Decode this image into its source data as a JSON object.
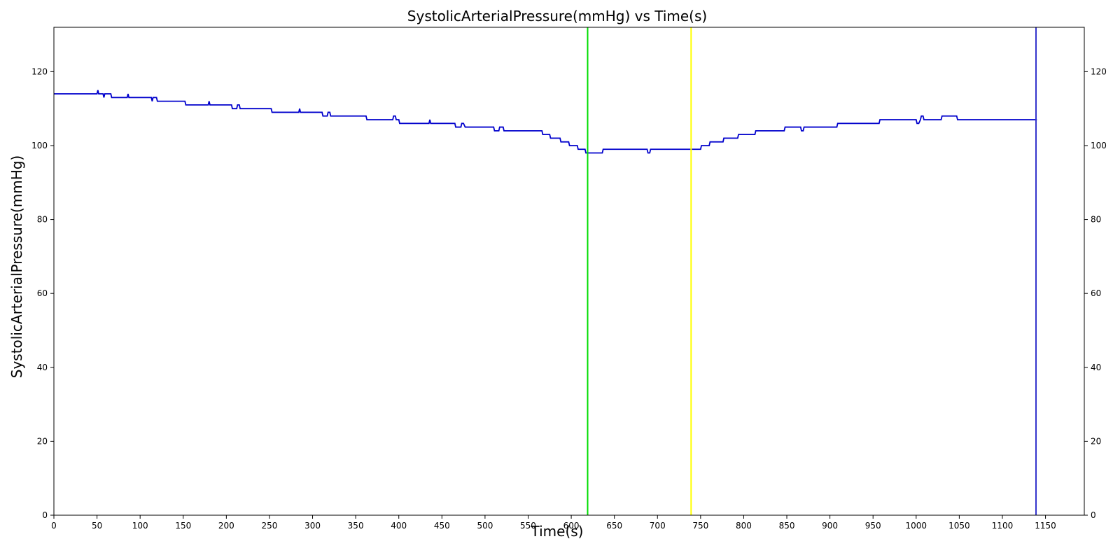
{
  "chart_data": {
    "type": "line",
    "title": "SystolicArterialPressure(mmHg) vs Time(s)",
    "xlabel": "Time(s)",
    "ylabel": "SystolicArterialPressure(mmHg)",
    "xlim": [
      0,
      1195
    ],
    "ylim": [
      0,
      132
    ],
    "xticks": [
      0,
      50,
      100,
      150,
      200,
      250,
      300,
      350,
      400,
      450,
      500,
      550,
      600,
      650,
      700,
      750,
      800,
      850,
      900,
      950,
      1000,
      1050,
      1100,
      1150
    ],
    "yticks": [
      0,
      20,
      40,
      60,
      80,
      100,
      120
    ],
    "right_axis_ticks": true,
    "grid": false,
    "series": [
      {
        "color": "#0000cc",
        "points": [
          [
            0,
            114
          ],
          [
            50,
            114
          ],
          [
            51,
            115
          ],
          [
            52,
            114
          ],
          [
            57,
            114
          ],
          [
            58,
            113
          ],
          [
            59,
            114
          ],
          [
            66,
            114
          ],
          [
            67,
            113
          ],
          [
            85,
            113
          ],
          [
            86,
            114
          ],
          [
            87,
            113
          ],
          [
            113,
            113
          ],
          [
            114,
            112
          ],
          [
            115,
            113
          ],
          [
            119,
            113
          ],
          [
            120,
            112
          ],
          [
            152,
            112
          ],
          [
            153,
            111
          ],
          [
            179,
            111
          ],
          [
            180,
            112
          ],
          [
            181,
            111
          ],
          [
            206,
            111
          ],
          [
            207,
            110
          ],
          [
            212,
            110
          ],
          [
            213,
            111
          ],
          [
            215,
            111
          ],
          [
            216,
            110
          ],
          [
            252,
            110
          ],
          [
            253,
            109
          ],
          [
            284,
            109
          ],
          [
            285,
            110
          ],
          [
            286,
            109
          ],
          [
            311,
            109
          ],
          [
            312,
            108
          ],
          [
            317,
            108
          ],
          [
            318,
            109
          ],
          [
            320,
            109
          ],
          [
            321,
            108
          ],
          [
            362,
            108
          ],
          [
            363,
            107
          ],
          [
            393,
            107
          ],
          [
            394,
            108
          ],
          [
            396,
            108
          ],
          [
            397,
            107
          ],
          [
            400,
            107
          ],
          [
            401,
            106
          ],
          [
            435,
            106
          ],
          [
            436,
            107
          ],
          [
            437,
            106
          ],
          [
            465,
            106
          ],
          [
            466,
            105
          ],
          [
            472,
            105
          ],
          [
            473,
            106
          ],
          [
            475,
            106
          ],
          [
            477,
            105
          ],
          [
            510,
            105
          ],
          [
            511,
            104
          ],
          [
            516,
            104
          ],
          [
            517,
            105
          ],
          [
            521,
            105
          ],
          [
            522,
            104
          ],
          [
            566,
            104
          ],
          [
            567,
            103
          ],
          [
            575,
            103
          ],
          [
            576,
            102
          ],
          [
            587,
            102
          ],
          [
            588,
            101
          ],
          [
            597,
            101
          ],
          [
            598,
            100
          ],
          [
            607,
            100
          ],
          [
            608,
            99
          ],
          [
            616,
            99
          ],
          [
            617,
            98
          ],
          [
            636,
            98
          ],
          [
            637,
            99
          ],
          [
            688,
            99
          ],
          [
            689,
            98
          ],
          [
            691,
            98
          ],
          [
            692,
            99
          ],
          [
            750,
            99
          ],
          [
            751,
            100
          ],
          [
            760,
            100
          ],
          [
            761,
            101
          ],
          [
            776,
            101
          ],
          [
            777,
            102
          ],
          [
            793,
            102
          ],
          [
            794,
            103
          ],
          [
            813,
            103
          ],
          [
            814,
            104
          ],
          [
            847,
            104
          ],
          [
            848,
            105
          ],
          [
            866,
            105
          ],
          [
            867,
            104
          ],
          [
            869,
            104
          ],
          [
            870,
            105
          ],
          [
            908,
            105
          ],
          [
            909,
            106
          ],
          [
            957,
            106
          ],
          [
            958,
            107
          ],
          [
            1000,
            107
          ],
          [
            1001,
            106
          ],
          [
            1003,
            106
          ],
          [
            1005,
            107
          ],
          [
            1006,
            108
          ],
          [
            1008,
            108
          ],
          [
            1009,
            107
          ],
          [
            1029,
            107
          ],
          [
            1030,
            108
          ],
          [
            1047,
            108
          ],
          [
            1048,
            107
          ],
          [
            1140,
            107
          ]
        ]
      }
    ],
    "vertical_lines": [
      {
        "x": 619,
        "color": "#00dd00"
      },
      {
        "x": 739,
        "color": "#ffff00"
      },
      {
        "x": 1139,
        "color": "#3333cc"
      }
    ]
  }
}
